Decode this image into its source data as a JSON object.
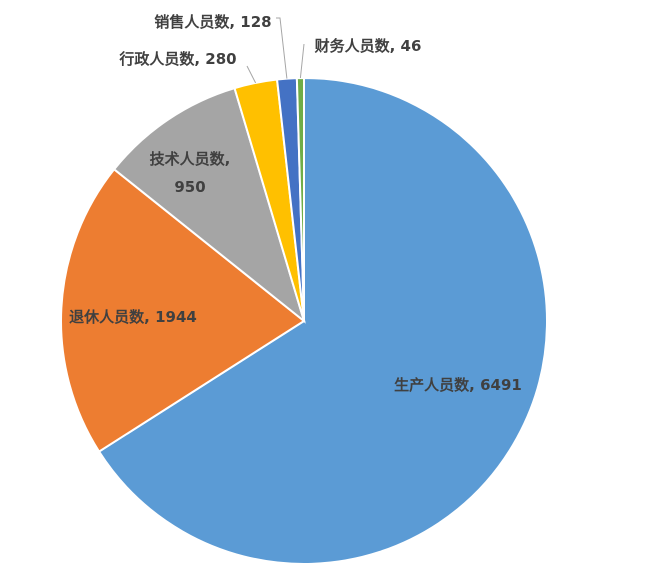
{
  "chart_data": {
    "type": "pie",
    "title": "",
    "categories": [
      "生产人员数",
      "退休人员数",
      "技术人员数",
      "行政人员数",
      "销售人员数",
      "财务人员数"
    ],
    "values": [
      6491,
      1944,
      950,
      280,
      128,
      46
    ],
    "colors": [
      "#5B9BD5",
      "#ED7D31",
      "#A5A5A5",
      "#FFC000",
      "#4472C4",
      "#70AD47"
    ],
    "labels": [
      {
        "name": "生产人员数",
        "text": "生产人员数, 6491"
      },
      {
        "name": "退休人员数",
        "text": "退休人员数, 1944"
      },
      {
        "name": "技术人员数",
        "text": "技术人员数,",
        "text2": "950"
      },
      {
        "name": "行政人员数",
        "text": "行政人员数, 280"
      },
      {
        "name": "销售人员数",
        "text": "销售人员数, 128"
      },
      {
        "name": "财务人员数",
        "text": "财务人员数, 46"
      }
    ],
    "legend": "none",
    "start_angle": "12 o'clock",
    "direction": "clockwise"
  }
}
